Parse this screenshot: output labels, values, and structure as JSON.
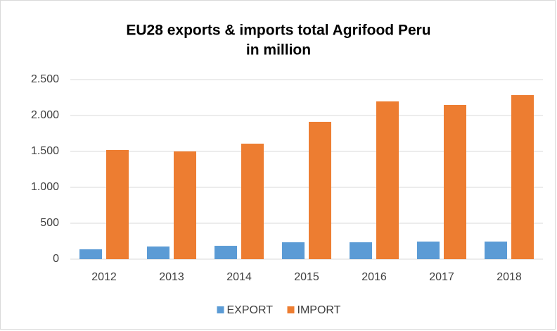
{
  "chart_data": {
    "type": "bar",
    "title": "EU28 exports & imports total Agrifood Peru",
    "subtitle": "in million",
    "categories": [
      "2012",
      "2013",
      "2014",
      "2015",
      "2016",
      "2017",
      "2018"
    ],
    "series": [
      {
        "name": "EXPORT",
        "color": "#5b9bd5",
        "values": [
          137,
          176,
          186,
          235,
          235,
          245,
          245
        ]
      },
      {
        "name": "IMPORT",
        "color": "#ed7d31",
        "values": [
          1520,
          1500,
          1608,
          1912,
          2196,
          2147,
          2284
        ]
      }
    ],
    "ylim": [
      0,
      2500
    ],
    "yticks": [
      0,
      500,
      {
        "value": 1000,
        "label": "1.000"
      },
      {
        "value": 1500,
        "label": "1.500"
      },
      {
        "value": 2000,
        "label": "2.000"
      },
      {
        "value": 2500,
        "label": "2.500"
      }
    ],
    "grid": true,
    "legend": "bottom"
  }
}
